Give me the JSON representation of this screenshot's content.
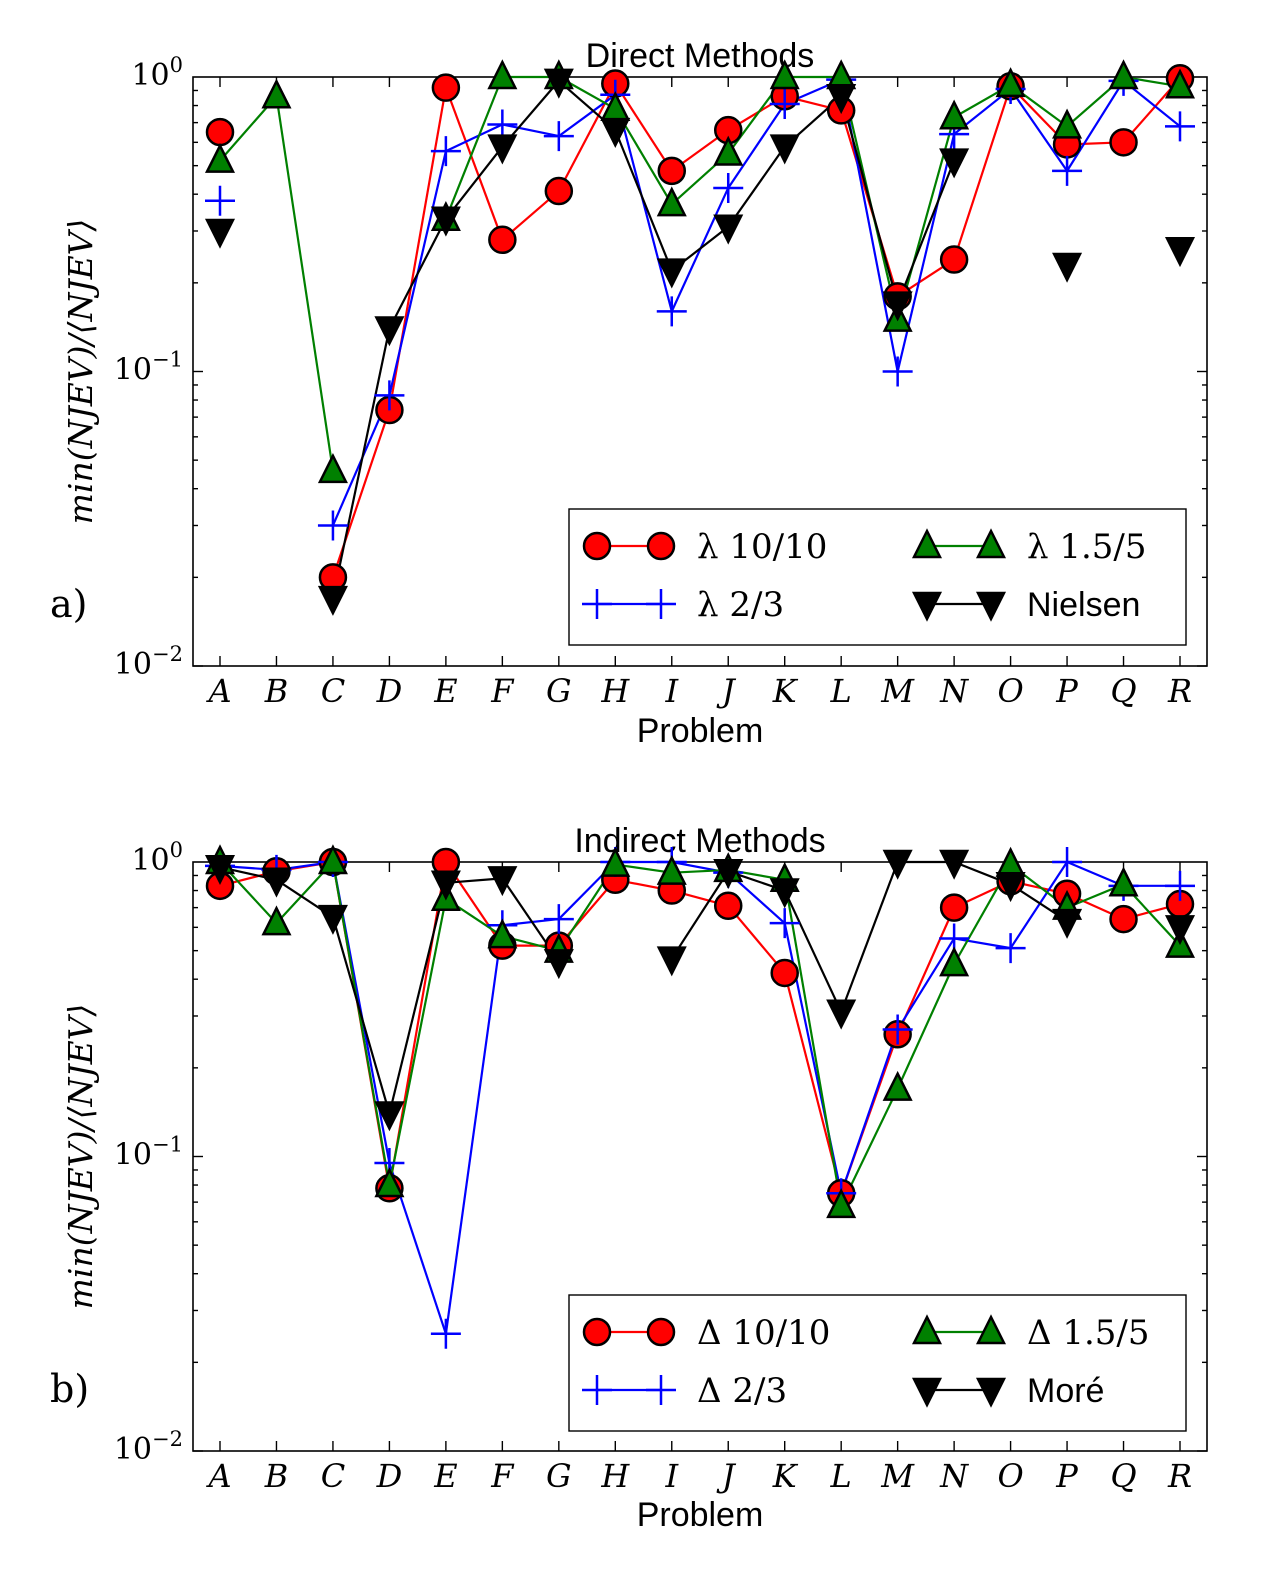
{
  "chart_data": [
    {
      "type": "line",
      "panel_label": "a)",
      "title": "Direct Methods",
      "xlabel": "Problem",
      "ylabel": "min(NJEV)/⟨NJEV⟩",
      "yscale": "log",
      "ylim": [
        0.01,
        1.0
      ],
      "yticks": [
        {
          "value": 1.0,
          "base": "10",
          "exp": "0"
        },
        {
          "value": 0.1,
          "base": "10",
          "exp": "−1"
        },
        {
          "value": 0.01,
          "base": "10",
          "exp": "−2"
        }
      ],
      "categories": [
        "A",
        "B",
        "C",
        "D",
        "E",
        "F",
        "G",
        "H",
        "I",
        "J",
        "K",
        "L",
        "M",
        "N",
        "O",
        "P",
        "Q",
        "R"
      ],
      "legend_position": "lower-right",
      "series": [
        {
          "name": "λ 10/10",
          "marker": "circle",
          "color": "#ff0000",
          "line_color": "#ff0000",
          "values": [
            0.65,
            null,
            0.02,
            0.074,
            0.92,
            0.28,
            0.41,
            0.95,
            0.48,
            0.66,
            0.86,
            0.77,
            0.18,
            0.24,
            0.93,
            0.59,
            0.6,
            0.99
          ]
        },
        {
          "name": "λ 2/3",
          "marker": "plus",
          "color": "#0000ff",
          "line_color": "#0000ff",
          "values": [
            0.38,
            null,
            0.03,
            0.083,
            0.56,
            0.69,
            0.63,
            0.87,
            0.16,
            0.42,
            0.81,
            0.98,
            0.1,
            0.64,
            0.91,
            0.48,
            0.97,
            0.68
          ]
        },
        {
          "name": "λ 1.5/5",
          "marker": "triangle-up",
          "color": "#008000",
          "line_color": "#008000",
          "values": [
            0.52,
            0.86,
            0.046,
            null,
            0.33,
            1.0,
            1.0,
            0.78,
            0.37,
            0.55,
            1.0,
            1.0,
            0.15,
            0.73,
            0.94,
            0.68,
            1.0,
            0.93
          ]
        },
        {
          "name": "Nielsen",
          "marker": "triangle-down",
          "color": "#000000",
          "line_color": "#000000",
          "values": [
            0.3,
            null,
            0.017,
            0.14,
            0.33,
            0.58,
            0.97,
            0.66,
            0.22,
            0.31,
            0.58,
            0.86,
            0.17,
            0.52,
            null,
            0.23,
            null,
            0.26
          ]
        }
      ]
    },
    {
      "type": "line",
      "panel_label": "b)",
      "title": "Indirect Methods",
      "xlabel": "Problem",
      "ylabel": "min(NJEV)/⟨NJEV⟩",
      "yscale": "log",
      "ylim": [
        0.01,
        1.0
      ],
      "yticks": [
        {
          "value": 1.0,
          "base": "10",
          "exp": "0"
        },
        {
          "value": 0.1,
          "base": "10",
          "exp": "−1"
        },
        {
          "value": 0.01,
          "base": "10",
          "exp": "−2"
        }
      ],
      "categories": [
        "A",
        "B",
        "C",
        "D",
        "E",
        "F",
        "G",
        "H",
        "I",
        "J",
        "K",
        "L",
        "M",
        "N",
        "O",
        "P",
        "Q",
        "R"
      ],
      "legend_position": "lower-right",
      "series": [
        {
          "name": "Δ 10/10",
          "marker": "circle",
          "color": "#ff0000",
          "line_color": "#ff0000",
          "values": [
            0.83,
            0.93,
            1.0,
            0.078,
            1.0,
            0.52,
            0.52,
            0.87,
            0.8,
            0.71,
            0.42,
            0.075,
            0.26,
            0.7,
            0.86,
            0.78,
            0.64,
            0.72
          ]
        },
        {
          "name": "Δ 2/3",
          "marker": "plus",
          "color": "#0000ff",
          "line_color": "#0000ff",
          "values": [
            0.97,
            0.94,
            1.0,
            0.095,
            0.025,
            0.61,
            0.64,
            1.0,
            1.0,
            0.92,
            0.62,
            0.075,
            0.27,
            0.55,
            0.51,
            1.0,
            0.83,
            0.83
          ]
        },
        {
          "name": "Δ 1.5/5",
          "marker": "triangle-up",
          "color": "#008000",
          "line_color": "#008000",
          "values": [
            1.0,
            0.62,
            1.0,
            0.08,
            0.75,
            0.56,
            0.5,
            0.98,
            0.92,
            0.94,
            0.87,
            0.068,
            0.17,
            0.45,
            0.98,
            0.7,
            0.84,
            0.52
          ]
        },
        {
          "name": "Moré",
          "marker": "triangle-down",
          "color": "#000000",
          "line_color": "#000000",
          "values": [
            0.96,
            0.87,
            0.65,
            0.14,
            0.85,
            0.88,
            0.46,
            null,
            0.47,
            0.93,
            0.8,
            0.31,
            1.0,
            1.0,
            0.84,
            0.63,
            null,
            0.6
          ]
        }
      ]
    }
  ]
}
